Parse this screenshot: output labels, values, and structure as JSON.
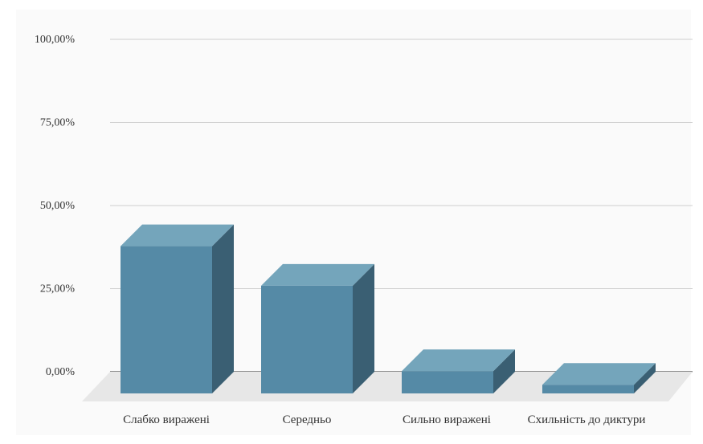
{
  "chart_data": {
    "type": "bar",
    "title": "",
    "xlabel": "",
    "ylabel": "",
    "categories": [
      "Слабко виражені",
      "Середньо",
      "Сильно виражені",
      "Схильність до диктури"
    ],
    "values": [
      44.3,
      32.4,
      6.7,
      2.6
    ],
    "ylim": [
      0,
      100
    ],
    "yticks": [
      0,
      25,
      50,
      75,
      100
    ],
    "ytick_labels": [
      "0,00%",
      "25,00%",
      "50,00%",
      "75,00%",
      "100,00%"
    ],
    "grid": true,
    "legend": "none",
    "three_d": true,
    "colors": {
      "bar_front": "#558aa6",
      "bar_top": "#74a5bb",
      "bar_side": "#3a5f73",
      "floor": "#e7e7e7",
      "gridline": "#cfcfcf",
      "baseline": "#6a6a6a",
      "plot_bg": "#fafafa",
      "text": "#333333"
    }
  }
}
